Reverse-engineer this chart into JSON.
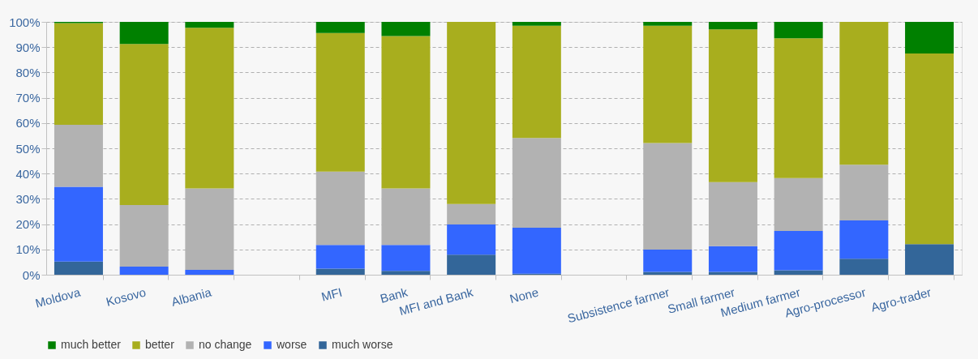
{
  "chart_data": {
    "type": "bar",
    "stacked": true,
    "categories": [
      "Moldova",
      "Kosovo",
      "Albania",
      null,
      "MFI",
      "Bank",
      "MFI and Bank",
      "None",
      null,
      "Subsistence farmer",
      "Small  farmer",
      "Medium farmer",
      "Agro-processor",
      "Agro-trader"
    ],
    "series": [
      {
        "name": "much worse",
        "color": "#336699",
        "values": [
          5.2,
          0,
          0,
          null,
          2.4,
          1.5,
          7.9,
          0.4,
          null,
          1.1,
          1.1,
          1.8,
          6.3,
          12.1
        ]
      },
      {
        "name": "worse",
        "color": "#3366ff",
        "values": [
          29.6,
          3.2,
          1.9,
          null,
          9.4,
          10.3,
          12,
          18.2,
          null,
          8.8,
          10.2,
          15.5,
          15.2,
          0
        ]
      },
      {
        "name": "no change",
        "color": "#b2b2b2",
        "values": [
          24.5,
          24.4,
          32.2,
          null,
          29,
          22.3,
          8.1,
          35.5,
          null,
          42.2,
          25.3,
          20.9,
          22,
          0
        ]
      },
      {
        "name": "better",
        "color": "#a8ae1e",
        "values": [
          40.2,
          63.7,
          63.6,
          null,
          54.8,
          60.3,
          72,
          44.4,
          null,
          46.4,
          60.4,
          55.3,
          56.5,
          75.4
        ]
      },
      {
        "name": "much better",
        "color": "#008000",
        "values": [
          0.5,
          8.7,
          2.3,
          null,
          4.4,
          5.6,
          0,
          1.5,
          null,
          1.5,
          3,
          6.5,
          0,
          12.5
        ]
      }
    ],
    "ylim": [
      0,
      100
    ],
    "yticks": [
      {
        "value": 0,
        "label": "0%"
      },
      {
        "value": 10,
        "label": "10%"
      },
      {
        "value": 20,
        "label": "20%"
      },
      {
        "value": 30,
        "label": "30%"
      },
      {
        "value": 40,
        "label": "40%"
      },
      {
        "value": 50,
        "label": "50%"
      },
      {
        "value": 60,
        "label": "60%"
      },
      {
        "value": 70,
        "label": "70%"
      },
      {
        "value": 80,
        "label": "80%"
      },
      {
        "value": 90,
        "label": "90%"
      },
      {
        "value": 100,
        "label": "100%"
      }
    ],
    "grid": "y",
    "legend": "bottom"
  }
}
